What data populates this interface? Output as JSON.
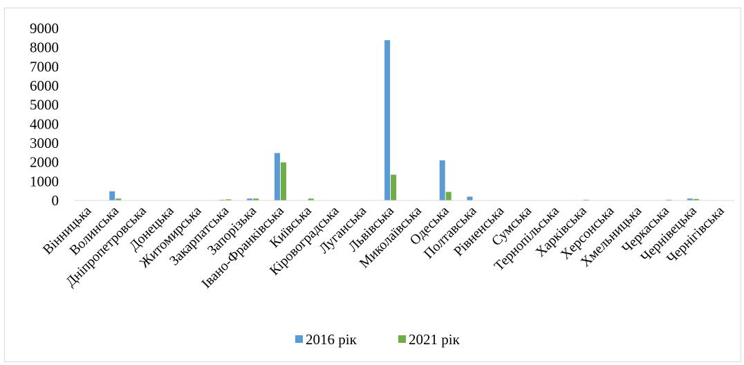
{
  "chart_data": {
    "type": "bar",
    "title": "",
    "xlabel": "",
    "ylabel": "",
    "ylim": [
      0,
      9000
    ],
    "y_ticks": [
      0,
      1000,
      2000,
      3000,
      4000,
      5000,
      6000,
      7000,
      8000,
      9000
    ],
    "grid": false,
    "legend_position": "bottom",
    "categories": [
      "Вінницька",
      "Волинська",
      "Дніпропетровська",
      "Донецька",
      "Житомирська",
      "Закарпатська",
      "Запорізька",
      "Івано-Франківська",
      "Київська",
      "Кіровоградська",
      "Луганська",
      "Львівська",
      "Миколаївська",
      "Одеська",
      "Полтавська",
      "Рівненська",
      "Сумська",
      "Тернопільська",
      "Харківська",
      "Херсонська",
      "Хмельницька",
      "Черкаська",
      "Чернівецька",
      "Чернігівська"
    ],
    "series": [
      {
        "name": "2016 рік",
        "color": "#5b9bd5",
        "values": [
          10,
          480,
          0,
          0,
          0,
          40,
          100,
          2480,
          0,
          10,
          0,
          8380,
          0,
          2100,
          200,
          0,
          0,
          0,
          0,
          0,
          0,
          0,
          100,
          0
        ]
      },
      {
        "name": "2021 рік",
        "color": "#70ad47",
        "values": [
          0,
          100,
          0,
          0,
          0,
          60,
          100,
          1990,
          100,
          0,
          0,
          1350,
          0,
          450,
          10,
          0,
          0,
          0,
          40,
          0,
          0,
          40,
          80,
          0
        ]
      }
    ]
  }
}
